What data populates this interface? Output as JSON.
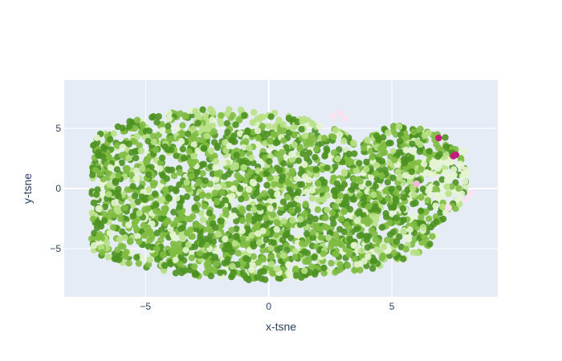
{
  "chart_data": {
    "type": "scatter",
    "title": "",
    "xlabel": "x-tsne",
    "ylabel": "y-tsne",
    "xlim": [
      -8.3,
      9.3
    ],
    "ylim": [
      -9.0,
      9.0
    ],
    "xticks": [
      -5,
      0,
      5
    ],
    "xtick_labels": [
      "−5",
      "0",
      "5"
    ],
    "yticks": [
      -5,
      0,
      5
    ],
    "ytick_labels": [
      "−5",
      "0",
      "5"
    ],
    "grid": true,
    "legend": "none",
    "colors": {
      "plot_background": "#e5ecf6",
      "grid": "#ffffff",
      "dark_green": "#4d9221",
      "mid_green": "#7fbc41",
      "light_green": "#b8e186",
      "pale_green": "#e6f5d0",
      "pale_pink": "#fde0ef",
      "light_pink": "#f1b6da",
      "magenta": "#c51b7d"
    },
    "series": [
      {
        "points": [
          {
            "x": 6.9,
            "y": 4.2,
            "color": "#c51b7d"
          },
          {
            "x": 7.5,
            "y": 2.7,
            "color": "#c51b7d"
          },
          {
            "x": 7.6,
            "y": 2.8,
            "color": "#c51b7d"
          },
          {
            "x": 7.9,
            "y": 3.1,
            "color": "#e6f5d0"
          },
          {
            "x": 6.0,
            "y": 0.4,
            "color": "#f1b6da"
          },
          {
            "x": 8.2,
            "y": -0.4,
            "color": "#fde0ef"
          },
          {
            "x": 8.0,
            "y": -0.9,
            "color": "#fde0ef"
          },
          {
            "x": 7.3,
            "y": -1.6,
            "color": "#fde0ef"
          },
          {
            "x": 2.6,
            "y": 6.0,
            "color": "#fde0ef"
          },
          {
            "x": 2.9,
            "y": 6.3,
            "color": "#fde0ef"
          },
          {
            "x": 3.1,
            "y": 5.8,
            "color": "#fde0ef"
          }
        ]
      }
    ]
  }
}
